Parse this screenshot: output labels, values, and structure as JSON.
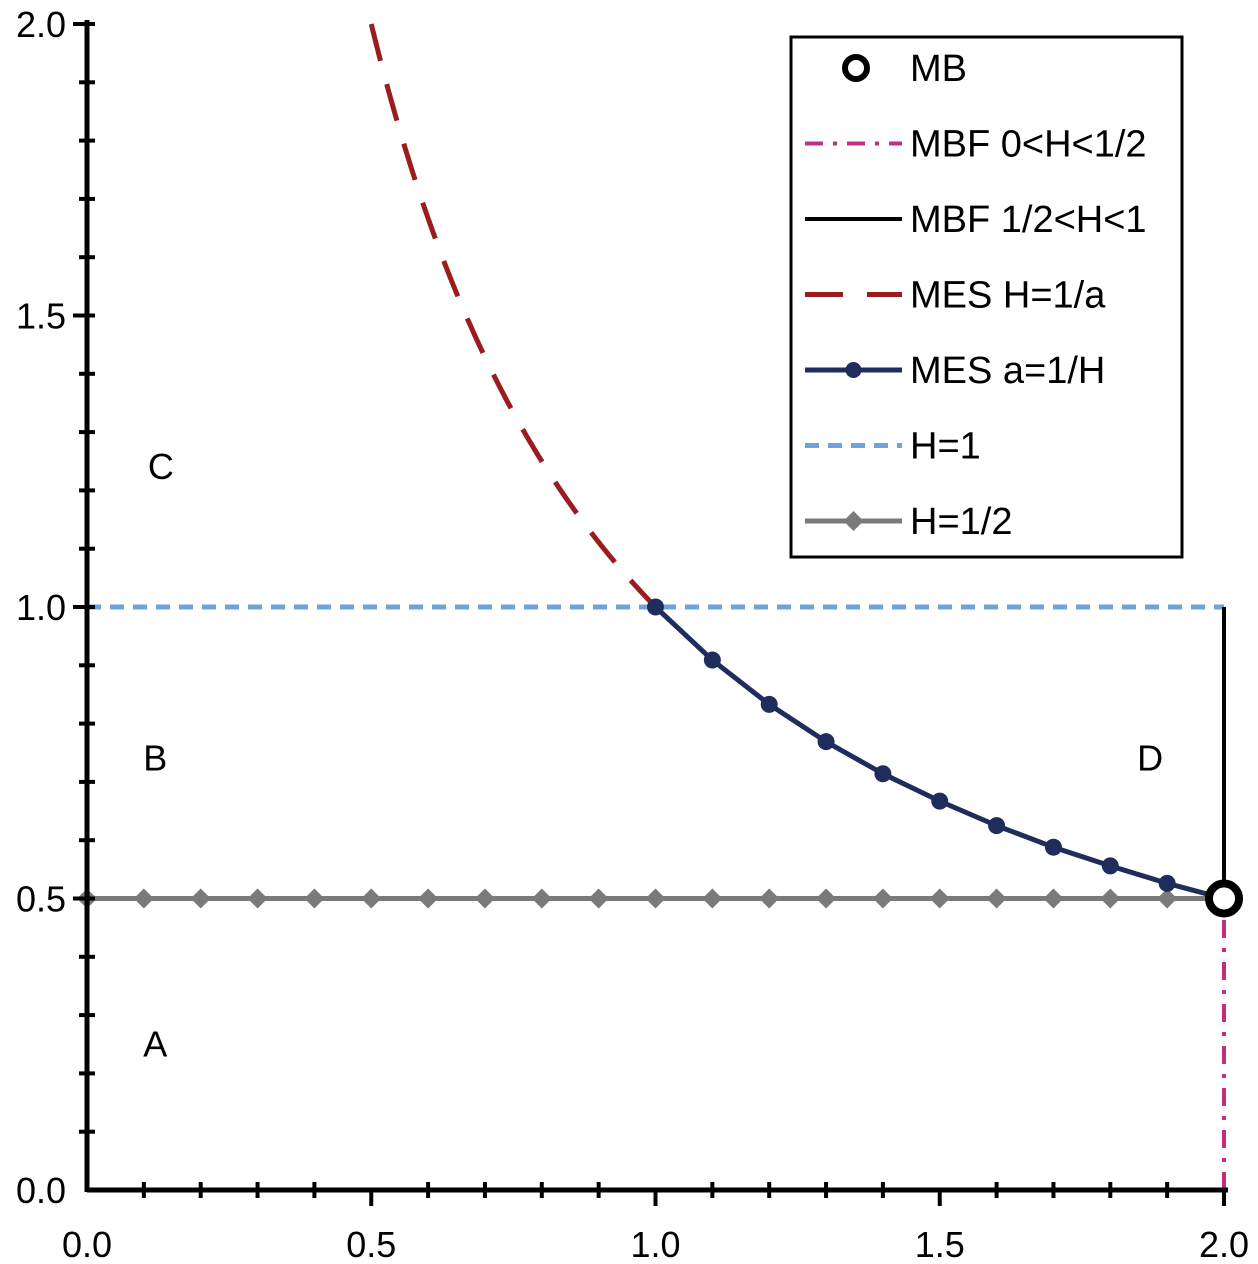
{
  "chart_data": {
    "type": "line",
    "title": "",
    "xlabel": "",
    "ylabel": "",
    "xlim": [
      0.0,
      2.0
    ],
    "ylim": [
      0.0,
      2.0
    ],
    "x_major_ticks": [
      "0.0",
      "0.5",
      "1.0",
      "1.5",
      "2.0"
    ],
    "y_major_ticks": [
      "0.0",
      "0.5",
      "1.0",
      "1.5",
      "2.0"
    ],
    "minor_tick_step": 0.1,
    "grid": false,
    "legend_position": "top-right",
    "series": [
      {
        "name": "MB",
        "style": "hollow-circle-marker",
        "color": "#000000",
        "x": [
          2.0
        ],
        "y": [
          0.5
        ]
      },
      {
        "name": "MBF 0<H<1/2",
        "style": "dash-dot",
        "color": "#c0307f",
        "x": [
          2.0,
          2.0
        ],
        "y": [
          0.0,
          0.5
        ]
      },
      {
        "name": "MBF 1/2<H<1",
        "style": "solid",
        "color": "#000000",
        "x": [
          2.0,
          2.0
        ],
        "y": [
          0.5,
          1.0
        ]
      },
      {
        "name": "MES H=1/a",
        "style": "long-dash",
        "color": "#9b1c1f",
        "function": "y=1/x",
        "x_range": [
          0.5,
          1.0
        ]
      },
      {
        "name": "MES a=1/H",
        "style": "solid-circle-markers",
        "color": "#1f2d5c",
        "x": [
          1.0,
          1.1,
          1.2,
          1.3,
          1.4,
          1.5,
          1.6,
          1.7,
          1.8,
          1.9,
          2.0
        ],
        "y": [
          1.0,
          0.909,
          0.833,
          0.769,
          0.714,
          0.667,
          0.625,
          0.588,
          0.556,
          0.526,
          0.5
        ]
      },
      {
        "name": "H=1",
        "style": "short-dash",
        "color": "#6fa3dc",
        "x": [
          0.0,
          2.0
        ],
        "y": [
          1.0,
          1.0
        ]
      },
      {
        "name": "H=1/2",
        "style": "solid-diamond-markers",
        "color": "#7a7a7a",
        "x": [
          0.0,
          0.1,
          0.2,
          0.3,
          0.4,
          0.5,
          0.6,
          0.7,
          0.8,
          0.9,
          1.0,
          1.1,
          1.2,
          1.3,
          1.4,
          1.5,
          1.6,
          1.7,
          1.8,
          1.9,
          2.0
        ],
        "y": [
          0.5,
          0.5,
          0.5,
          0.5,
          0.5,
          0.5,
          0.5,
          0.5,
          0.5,
          0.5,
          0.5,
          0.5,
          0.5,
          0.5,
          0.5,
          0.5,
          0.5,
          0.5,
          0.5,
          0.5,
          0.5
        ]
      }
    ],
    "annotations": [
      {
        "text": "A",
        "x": 0.12,
        "y": 0.25
      },
      {
        "text": "B",
        "x": 0.12,
        "y": 0.74
      },
      {
        "text": "C",
        "x": 0.13,
        "y": 1.24
      },
      {
        "text": "D",
        "x": 1.87,
        "y": 0.74
      }
    ]
  }
}
